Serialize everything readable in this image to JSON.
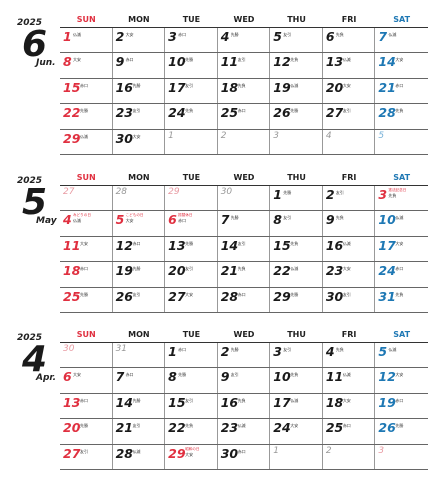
{
  "weekdays": [
    "SUN",
    "MON",
    "TUE",
    "WED",
    "THU",
    "FRI",
    "SAT"
  ],
  "months": [
    {
      "year": "2025",
      "num": "6",
      "name": "Jun.",
      "weeks": [
        [
          {
            "d": "1",
            "r": "仏滅",
            "c": "red"
          },
          {
            "d": "2",
            "r": "大安"
          },
          {
            "d": "3",
            "r": "赤口"
          },
          {
            "d": "4",
            "r": "先勝"
          },
          {
            "d": "5",
            "r": "友引"
          },
          {
            "d": "6",
            "r": "先負"
          },
          {
            "d": "7",
            "r": "仏滅",
            "c": "blue"
          }
        ],
        [
          {
            "d": "8",
            "r": "大安",
            "c": "red"
          },
          {
            "d": "9",
            "r": "赤口"
          },
          {
            "d": "10",
            "r": "先勝"
          },
          {
            "d": "11",
            "r": "友引"
          },
          {
            "d": "12",
            "r": "先負"
          },
          {
            "d": "13",
            "r": "仏滅"
          },
          {
            "d": "14",
            "r": "大安",
            "c": "blue"
          }
        ],
        [
          {
            "d": "15",
            "r": "赤口",
            "c": "red"
          },
          {
            "d": "16",
            "r": "先勝"
          },
          {
            "d": "17",
            "r": "友引"
          },
          {
            "d": "18",
            "r": "先負"
          },
          {
            "d": "19",
            "r": "仏滅"
          },
          {
            "d": "20",
            "r": "大安"
          },
          {
            "d": "21",
            "r": "赤口",
            "c": "blue"
          }
        ],
        [
          {
            "d": "22",
            "r": "先勝",
            "c": "red"
          },
          {
            "d": "23",
            "r": "友引"
          },
          {
            "d": "24",
            "r": "先負"
          },
          {
            "d": "25",
            "r": "赤口"
          },
          {
            "d": "26",
            "r": "先勝"
          },
          {
            "d": "27",
            "r": "友引"
          },
          {
            "d": "28",
            "r": "先負",
            "c": "blue"
          }
        ],
        [
          {
            "d": "29",
            "r": "仏滅",
            "c": "red"
          },
          {
            "d": "30",
            "r": "大安"
          },
          {
            "d": "1",
            "c": "dim"
          },
          {
            "d": "2",
            "c": "dim"
          },
          {
            "d": "3",
            "c": "dim"
          },
          {
            "d": "4",
            "c": "dim"
          },
          {
            "d": "5",
            "c": "dimblue"
          }
        ]
      ]
    },
    {
      "year": "2025",
      "num": "5",
      "name": "May",
      "weeks": [
        [
          {
            "d": "27",
            "c": "dimred"
          },
          {
            "d": "28",
            "c": "dim"
          },
          {
            "d": "29",
            "c": "dimred"
          },
          {
            "d": "30",
            "c": "dim"
          },
          {
            "d": "1",
            "r": "先勝"
          },
          {
            "d": "2",
            "r": "友引"
          },
          {
            "d": "3",
            "r": "先負",
            "h": "憲法記念日",
            "c": "red"
          }
        ],
        [
          {
            "d": "4",
            "r": "仏滅",
            "h": "みどりの日",
            "c": "red"
          },
          {
            "d": "5",
            "r": "大安",
            "h": "こどもの日",
            "c": "red"
          },
          {
            "d": "6",
            "r": "赤口",
            "h": "振替休日",
            "c": "red"
          },
          {
            "d": "7",
            "r": "先勝"
          },
          {
            "d": "8",
            "r": "友引"
          },
          {
            "d": "9",
            "r": "先負"
          },
          {
            "d": "10",
            "r": "仏滅",
            "c": "blue"
          }
        ],
        [
          {
            "d": "11",
            "r": "大安",
            "c": "red"
          },
          {
            "d": "12",
            "r": "赤口"
          },
          {
            "d": "13",
            "r": "先勝"
          },
          {
            "d": "14",
            "r": "友引"
          },
          {
            "d": "15",
            "r": "先負"
          },
          {
            "d": "16",
            "r": "仏滅"
          },
          {
            "d": "17",
            "r": "大安",
            "c": "blue"
          }
        ],
        [
          {
            "d": "18",
            "r": "赤口",
            "c": "red"
          },
          {
            "d": "19",
            "r": "先勝"
          },
          {
            "d": "20",
            "r": "友引"
          },
          {
            "d": "21",
            "r": "先負"
          },
          {
            "d": "22",
            "r": "仏滅"
          },
          {
            "d": "23",
            "r": "大安"
          },
          {
            "d": "24",
            "r": "赤口",
            "c": "blue"
          }
        ],
        [
          {
            "d": "25",
            "r": "先勝",
            "c": "red"
          },
          {
            "d": "26",
            "r": "友引"
          },
          {
            "d": "27",
            "r": "大安"
          },
          {
            "d": "28",
            "r": "赤口"
          },
          {
            "d": "29",
            "r": "先勝"
          },
          {
            "d": "30",
            "r": "友引"
          },
          {
            "d": "31",
            "r": "先負",
            "c": "blue"
          }
        ]
      ]
    },
    {
      "year": "2025",
      "num": "4",
      "name": "Apr.",
      "weeks": [
        [
          {
            "d": "30",
            "c": "dimred"
          },
          {
            "d": "31",
            "c": "dim"
          },
          {
            "d": "1",
            "r": "赤口"
          },
          {
            "d": "2",
            "r": "先勝"
          },
          {
            "d": "3",
            "r": "友引"
          },
          {
            "d": "4",
            "r": "先負"
          },
          {
            "d": "5",
            "r": "仏滅",
            "c": "blue"
          }
        ],
        [
          {
            "d": "6",
            "r": "大安",
            "c": "red"
          },
          {
            "d": "7",
            "r": "赤口"
          },
          {
            "d": "8",
            "r": "先勝"
          },
          {
            "d": "9",
            "r": "友引"
          },
          {
            "d": "10",
            "r": "先負"
          },
          {
            "d": "11",
            "r": "仏滅"
          },
          {
            "d": "12",
            "r": "大安",
            "c": "blue"
          }
        ],
        [
          {
            "d": "13",
            "r": "赤口",
            "c": "red"
          },
          {
            "d": "14",
            "r": "先勝"
          },
          {
            "d": "15",
            "r": "友引"
          },
          {
            "d": "16",
            "r": "先負"
          },
          {
            "d": "17",
            "r": "仏滅"
          },
          {
            "d": "18",
            "r": "大安"
          },
          {
            "d": "19",
            "r": "赤口",
            "c": "blue"
          }
        ],
        [
          {
            "d": "20",
            "r": "先勝",
            "c": "red"
          },
          {
            "d": "21",
            "r": "友引"
          },
          {
            "d": "22",
            "r": "先負"
          },
          {
            "d": "23",
            "r": "仏滅"
          },
          {
            "d": "24",
            "r": "大安"
          },
          {
            "d": "25",
            "r": "赤口"
          },
          {
            "d": "26",
            "r": "先勝",
            "c": "blue"
          }
        ],
        [
          {
            "d": "27",
            "r": "友引",
            "c": "red"
          },
          {
            "d": "28",
            "r": "仏滅"
          },
          {
            "d": "29",
            "r": "大安",
            "h": "昭和の日",
            "c": "red"
          },
          {
            "d": "30",
            "r": "赤口"
          },
          {
            "d": "1",
            "c": "dim"
          },
          {
            "d": "2",
            "c": "dim"
          },
          {
            "d": "3",
            "c": "dimred"
          }
        ]
      ]
    }
  ]
}
